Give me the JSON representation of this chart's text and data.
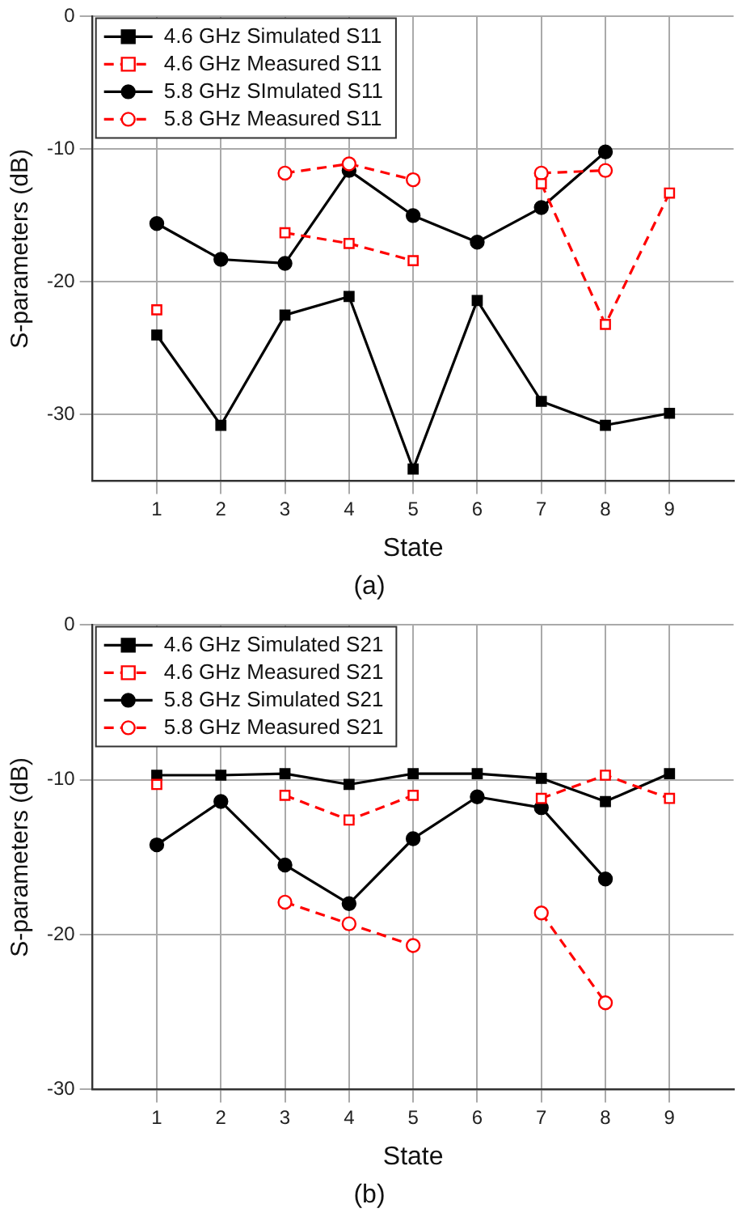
{
  "chart_data": [
    {
      "type": "line",
      "title": "(a)",
      "xlabel": "State",
      "ylabel": "S-parameters (dB)",
      "x": [
        1,
        2,
        3,
        4,
        5,
        6,
        7,
        8,
        9
      ],
      "xlim": [
        0,
        10
      ],
      "xticks": [
        1,
        2,
        3,
        4,
        5,
        6,
        7,
        8,
        9
      ],
      "ylim": [
        -35,
        0
      ],
      "yticks": [
        0,
        -10,
        -20,
        -30
      ],
      "grid": true,
      "legend": "top left",
      "series": [
        {
          "name": "4.6 GHz Simulated S11",
          "color": "#000000",
          "marker": "square",
          "line_style": "solid",
          "values": [
            -24.0,
            -30.8,
            -22.5,
            -21.1,
            -34.1,
            -21.4,
            -29.0,
            -30.8,
            -29.9
          ]
        },
        {
          "name": "4.6 GHz Measured S11",
          "color": "#ff0000",
          "marker": "square",
          "line_style": "dashed",
          "values": [
            -22.1,
            null,
            -16.3,
            -17.1,
            -18.4,
            null,
            -12.6,
            -23.2,
            -13.3
          ]
        },
        {
          "name": "5.8 GHz SImulated S11",
          "color": "#000000",
          "marker": "circle",
          "line_style": "solid",
          "values": [
            -15.6,
            -18.3,
            -18.6,
            -11.6,
            -15.0,
            -17.0,
            -14.4,
            -10.2,
            null
          ]
        },
        {
          "name": "5.8 GHz Measured S11",
          "color": "#ff0000",
          "marker": "circle",
          "line_style": "dashed",
          "values": [
            null,
            null,
            -11.8,
            -11.1,
            -12.3,
            null,
            -11.8,
            -11.6,
            null
          ]
        }
      ]
    },
    {
      "type": "line",
      "title": "(b)",
      "xlabel": "State",
      "ylabel": "S-parameters (dB)",
      "x": [
        1,
        2,
        3,
        4,
        5,
        6,
        7,
        8,
        9
      ],
      "xlim": [
        0,
        10
      ],
      "xticks": [
        1,
        2,
        3,
        4,
        5,
        6,
        7,
        8,
        9
      ],
      "ylim": [
        -30,
        0
      ],
      "yticks": [
        0,
        -10,
        -20,
        -30
      ],
      "grid": true,
      "legend": "top left",
      "series": [
        {
          "name": "4.6 GHz Simulated S21",
          "color": "#000000",
          "marker": "square",
          "line_style": "solid",
          "values": [
            -9.7,
            -9.7,
            -9.6,
            -10.3,
            -9.6,
            -9.6,
            -9.9,
            -11.4,
            -9.6
          ]
        },
        {
          "name": "4.6 GHz Measured S21",
          "color": "#ff0000",
          "marker": "square",
          "line_style": "dashed",
          "values": [
            -10.3,
            null,
            -11.0,
            -12.6,
            -11.0,
            null,
            -11.2,
            -9.7,
            -11.2
          ]
        },
        {
          "name": "5.8 GHz Simulated S21",
          "color": "#000000",
          "marker": "circle",
          "line_style": "solid",
          "values": [
            -14.2,
            -11.4,
            -15.5,
            -18.0,
            -13.8,
            -11.1,
            -11.8,
            -16.4,
            null
          ]
        },
        {
          "name": "5.8 GHz Measured S21",
          "color": "#ff0000",
          "marker": "circle",
          "line_style": "dashed",
          "values": [
            null,
            null,
            -17.9,
            -19.3,
            -20.7,
            null,
            -18.6,
            -24.4,
            null
          ]
        }
      ]
    }
  ]
}
